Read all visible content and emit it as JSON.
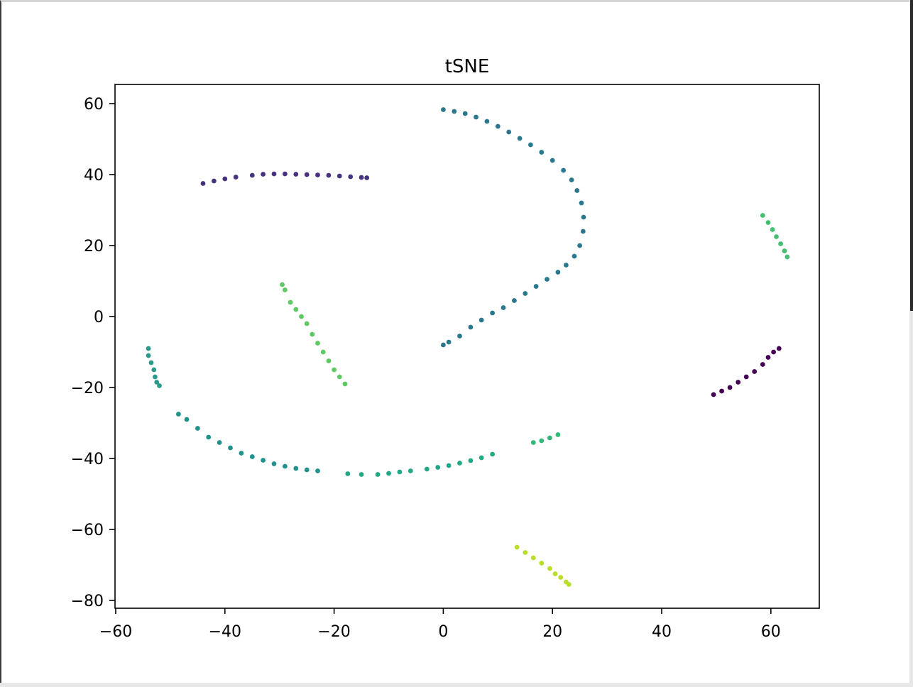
{
  "chart_data": {
    "type": "scatter",
    "title": "tSNE",
    "xlabel": "",
    "ylabel": "",
    "xlim": [
      -60,
      68
    ],
    "ylim": [
      -82,
      65
    ],
    "xticks": [
      -60,
      -40,
      -20,
      0,
      20,
      40,
      60
    ],
    "xtick_labels": [
      "−60",
      "−40",
      "−20",
      "0",
      "20",
      "40",
      "60"
    ],
    "yticks": [
      60,
      40,
      20,
      0,
      -20,
      -40,
      -60,
      -80
    ],
    "ytick_labels": [
      "60",
      "40",
      "20",
      "0",
      "−20",
      "−40",
      "−60",
      "−80"
    ],
    "grid": false,
    "colormap": "viridis",
    "colormap_stops": [
      "#440154",
      "#46327e",
      "#365c8d",
      "#277f8e",
      "#1fa187",
      "#4ac16d",
      "#a0da39",
      "#fde725"
    ],
    "series": [
      {
        "color": "#46327e",
        "points": [
          [
            -44,
            37.5
          ],
          [
            -42,
            38.2
          ],
          [
            -40,
            38.8
          ],
          [
            -38,
            39.3
          ],
          [
            -35,
            39.8
          ],
          [
            -33,
            40.1
          ],
          [
            -31,
            40.2
          ],
          [
            -29,
            40.2
          ],
          [
            -27,
            40.1
          ],
          [
            -25,
            40.0
          ],
          [
            -23,
            39.9
          ],
          [
            -21,
            39.8
          ],
          [
            -19,
            39.6
          ],
          [
            -17,
            39.4
          ],
          [
            -15,
            39.2
          ],
          [
            -14,
            39.1
          ]
        ]
      },
      {
        "color": "#2a788e",
        "points": [
          [
            0,
            58.3
          ],
          [
            2,
            57.8
          ],
          [
            4,
            57.2
          ],
          [
            6,
            56.2
          ],
          [
            8,
            55.0
          ],
          [
            10,
            53.6
          ],
          [
            12,
            52.0
          ],
          [
            14,
            50.2
          ],
          [
            16,
            48.4
          ],
          [
            18,
            46.3
          ],
          [
            20,
            44.0
          ],
          [
            22,
            41.2
          ],
          [
            23.5,
            38.5
          ],
          [
            24.5,
            35.5
          ],
          [
            25.3,
            32
          ],
          [
            25.7,
            28
          ],
          [
            25.6,
            24
          ],
          [
            25,
            20
          ],
          [
            24,
            17
          ],
          [
            22.5,
            14.5
          ],
          [
            21,
            12.5
          ],
          [
            19,
            10.5
          ],
          [
            17,
            8.5
          ],
          [
            15,
            6.5
          ],
          [
            13,
            4.5
          ],
          [
            11,
            2.5
          ],
          [
            9,
            1
          ],
          [
            7,
            -1
          ],
          [
            5,
            -3
          ],
          [
            3,
            -5.5
          ],
          [
            1,
            -7.2
          ],
          [
            0,
            -8
          ]
        ]
      },
      {
        "color": "#44bf70",
        "points": [
          [
            58.5,
            28.5
          ],
          [
            59.5,
            26.5
          ],
          [
            60.3,
            24.5
          ],
          [
            61,
            22.5
          ],
          [
            61.8,
            20.5
          ],
          [
            62.5,
            18.5
          ],
          [
            63,
            16.8
          ]
        ]
      },
      {
        "color": "#440154",
        "points": [
          [
            49.5,
            -22
          ],
          [
            51,
            -21
          ],
          [
            52.5,
            -20
          ],
          [
            54,
            -18.5
          ],
          [
            55.5,
            -17
          ],
          [
            57,
            -15.5
          ],
          [
            58.5,
            -13.5
          ],
          [
            59.5,
            -11.5
          ],
          [
            60.5,
            -10
          ],
          [
            61.5,
            -9
          ]
        ]
      },
      {
        "color": "#5ec962",
        "points": [
          [
            -29.5,
            9
          ],
          [
            -29,
            7.5
          ],
          [
            -28,
            4
          ],
          [
            -27,
            2
          ],
          [
            -26,
            0
          ],
          [
            -25,
            -2
          ],
          [
            -24,
            -5
          ],
          [
            -23,
            -7.5
          ],
          [
            -22,
            -10
          ],
          [
            -21,
            -12.5
          ],
          [
            -20,
            -15
          ],
          [
            -19,
            -17
          ],
          [
            -18,
            -19
          ]
        ]
      },
      {
        "color": "#2a9a8a",
        "points": [
          [
            -54,
            -9
          ],
          [
            -54,
            -11
          ],
          [
            -53.5,
            -13
          ],
          [
            -53,
            -15
          ],
          [
            -52.8,
            -17
          ],
          [
            -52.5,
            -18.5
          ],
          [
            -52,
            -19.5
          ]
        ]
      },
      {
        "color": "#21918c",
        "points": [
          [
            -48.5,
            -27.5
          ],
          [
            -47,
            -29
          ],
          [
            -45,
            -31.5
          ],
          [
            -43,
            -34
          ],
          [
            -41,
            -35.5
          ],
          [
            -39,
            -37
          ],
          [
            -37,
            -38.5
          ],
          [
            -35,
            -39.5
          ],
          [
            -33,
            -40.5
          ],
          [
            -31,
            -41.5
          ],
          [
            -29,
            -42.2
          ],
          [
            -27,
            -42.8
          ],
          [
            -25,
            -43.2
          ],
          [
            -23,
            -43.5
          ]
        ]
      },
      {
        "color": "#22a884",
        "points": [
          [
            -17.5,
            -44.3
          ],
          [
            -15,
            -44.5
          ],
          [
            -12,
            -44.5
          ],
          [
            -10,
            -44.2
          ],
          [
            -8,
            -43.8
          ],
          [
            -6,
            -43.5
          ],
          [
            -3,
            -43
          ],
          [
            -1,
            -42.5
          ],
          [
            1,
            -42
          ],
          [
            3,
            -41.3
          ],
          [
            5,
            -40.6
          ],
          [
            7,
            -39.8
          ],
          [
            9,
            -38.8
          ]
        ]
      },
      {
        "color": "#35b779",
        "points": [
          [
            16.5,
            -35.5
          ],
          [
            18,
            -35
          ],
          [
            19.5,
            -34.2
          ],
          [
            21,
            -33.3
          ]
        ]
      },
      {
        "color": "#b8de29",
        "points": [
          [
            13.5,
            -65
          ],
          [
            15,
            -66.5
          ],
          [
            16.5,
            -68
          ],
          [
            18,
            -69.5
          ],
          [
            19.5,
            -71
          ],
          [
            20.5,
            -72.5
          ],
          [
            21.5,
            -73.5
          ],
          [
            22.5,
            -74.8
          ],
          [
            23,
            -75.5
          ]
        ]
      }
    ]
  }
}
